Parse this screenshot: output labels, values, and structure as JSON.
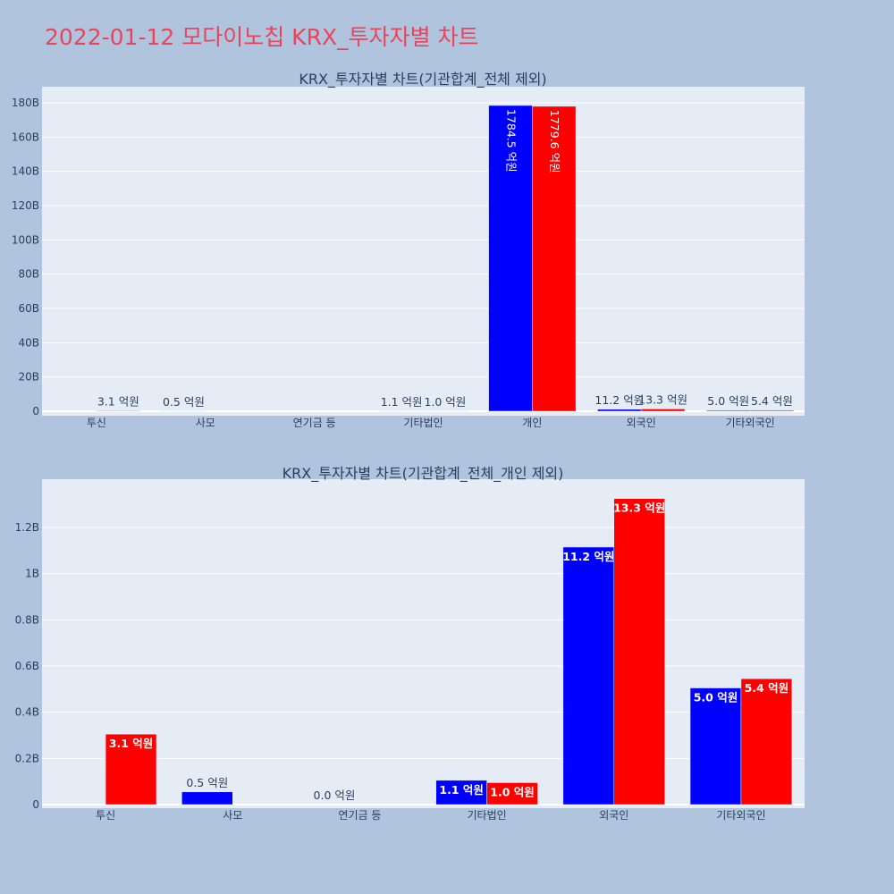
{
  "title": "2022-01-12 모다이노칩 KRX_투자자별 차트",
  "colors": {
    "page_bg": "#b0c4de",
    "plot_bg": "#e5ecf6",
    "grid": "#ffffff",
    "title": "#e8455c",
    "text": "#2a3f5f",
    "series_blue": "#0000ff",
    "series_red": "#ff0000"
  },
  "chart_data": [
    {
      "type": "bar",
      "title": "KRX_투자자별 차트(기관합계_전체 제외)",
      "categories": [
        "투신",
        "사모",
        "연기금 등",
        "기타법인",
        "개인",
        "외국인",
        "기타외국인"
      ],
      "ylim": [
        0,
        190000000000
      ],
      "yticks": [
        {
          "value": 0,
          "label": "0"
        },
        {
          "value": 20000000000,
          "label": "20B"
        },
        {
          "value": 40000000000,
          "label": "40B"
        },
        {
          "value": 60000000000,
          "label": "60B"
        },
        {
          "value": 80000000000,
          "label": "80B"
        },
        {
          "value": 100000000000,
          "label": "100B"
        },
        {
          "value": 120000000000,
          "label": "120B"
        },
        {
          "value": 140000000000,
          "label": "140B"
        },
        {
          "value": 160000000000,
          "label": "160B"
        },
        {
          "value": 180000000000,
          "label": "180B"
        }
      ],
      "grid": true,
      "series": [
        {
          "values": [
            null,
            50000000,
            null,
            110000000,
            178450000000,
            1120000000,
            500000000
          ],
          "labels": [
            null,
            "0.5 억원",
            null,
            "1.1 억원",
            "1784.5 억원",
            "11.2 억원",
            "5.0 억원"
          ]
        },
        {
          "values": [
            310000000,
            null,
            null,
            100000000,
            177960000000,
            1330000000,
            540000000
          ],
          "labels": [
            "3.1 억원",
            null,
            null,
            "1.0 억원",
            "1779.6 억원",
            "13.3 억원",
            "5.4 억원"
          ]
        }
      ]
    },
    {
      "type": "bar",
      "title": "KRX_투자자별 차트(기관합계_전체_개인 제외)",
      "categories": [
        "투신",
        "사모",
        "연기금 등",
        "기타법인",
        "외국인",
        "기타외국인"
      ],
      "ylim": [
        0,
        1400000000
      ],
      "yticks": [
        {
          "value": 0,
          "label": "0"
        },
        {
          "value": 200000000,
          "label": "0.2B"
        },
        {
          "value": 400000000,
          "label": "0.4B"
        },
        {
          "value": 600000000,
          "label": "0.6B"
        },
        {
          "value": 800000000,
          "label": "0.8B"
        },
        {
          "value": 1000000000,
          "label": "1B"
        },
        {
          "value": 1200000000,
          "label": "1.2B"
        }
      ],
      "grid": true,
      "series": [
        {
          "values": [
            null,
            55000000,
            0,
            105000000,
            1115000000,
            505000000
          ],
          "labels": [
            null,
            "0.5 억원",
            "0.0 억원",
            "1.1 억원",
            "11.2 억원",
            "5.0 억원"
          ]
        },
        {
          "values": [
            305000000,
            null,
            null,
            95000000,
            1325000000,
            545000000
          ],
          "labels": [
            "3.1 억원",
            null,
            null,
            "1.0 억원",
            "13.3 억원",
            "5.4 억원"
          ]
        }
      ]
    }
  ]
}
